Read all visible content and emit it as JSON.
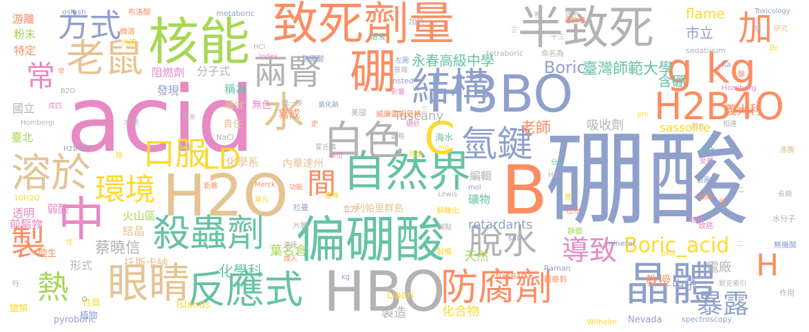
{
  "palette": {
    "slate": "#8fa0cb",
    "green": "#66c2a5",
    "orange": "#fc8d62",
    "pink": "#e78ac3",
    "lime": "#a6d854",
    "yellow": "#ffd92f",
    "tan": "#e5c494",
    "gray": "#b3b3b3"
  },
  "words": [
    {
      "text": "硼酸",
      "color": "slate"
    },
    {
      "text": "acid",
      "color": "pink"
    },
    {
      "text": "B",
      "color": "orange"
    },
    {
      "text": "偏硼酸",
      "color": "green"
    },
    {
      "text": "H2O",
      "color": "tan"
    },
    {
      "text": "致死劑量",
      "color": "orange"
    },
    {
      "text": "半致死",
      "color": "gray"
    },
    {
      "text": "H3BO",
      "color": "slate"
    },
    {
      "text": "核能",
      "color": "lime"
    },
    {
      "text": "自然界",
      "color": "green"
    },
    {
      "text": "HBO",
      "color": "gray"
    },
    {
      "text": "晶體",
      "color": "slate"
    },
    {
      "text": "眼睛",
      "color": "tan"
    },
    {
      "text": "中",
      "color": "pink"
    },
    {
      "text": "白色",
      "color": "gray"
    },
    {
      "text": "g kg",
      "color": "orange"
    },
    {
      "text": "H2B4O",
      "color": "orange"
    },
    {
      "text": "溶於",
      "color": "tan"
    },
    {
      "text": "殺蟲劑",
      "color": "green"
    },
    {
      "text": "反應式",
      "color": "green"
    },
    {
      "text": "防腐劑",
      "color": "orange"
    },
    {
      "text": "硼",
      "color": "orange"
    },
    {
      "text": "結構",
      "color": "slate"
    },
    {
      "text": "氫鍵",
      "color": "slate"
    },
    {
      "text": "C",
      "color": "yellow"
    },
    {
      "text": "水",
      "color": "tan"
    },
    {
      "text": "老鼠",
      "color": "tan"
    },
    {
      "text": "方式",
      "color": "slate"
    },
    {
      "text": "加",
      "color": "orange"
    },
    {
      "text": "兩腎",
      "color": "gray"
    },
    {
      "text": "脫水",
      "color": "gray"
    },
    {
      "text": "暴露",
      "color": "slate"
    },
    {
      "text": "環境",
      "color": "yellow"
    },
    {
      "text": "口服",
      "color": "yellow"
    },
    {
      "text": "製",
      "color": "orange"
    },
    {
      "text": "熱",
      "color": "lime"
    },
    {
      "text": "常",
      "color": "pink"
    },
    {
      "text": "LD",
      "color": "yellow"
    },
    {
      "text": "間",
      "color": "orange"
    },
    {
      "text": "導致",
      "color": "pink"
    },
    {
      "text": "Boric_acid",
      "color": "yellow"
    },
    {
      "text": "H",
      "color": "orange"
    },
    {
      "text": "Boric",
      "color": "slate"
    },
    {
      "text": "臺灣師範大學",
      "color": "green"
    },
    {
      "text": "永春高級中學",
      "color": "green"
    },
    {
      "text": "市立",
      "color": "slate"
    },
    {
      "text": "flame",
      "color": "yellow"
    },
    {
      "text": "含硼",
      "color": "green"
    },
    {
      "text": "老師",
      "color": "orange"
    },
    {
      "text": "吸收劑",
      "color": "gray"
    },
    {
      "text": "sassolite",
      "color": "yellow"
    },
    {
      "text": "義大利",
      "color": "orange"
    },
    {
      "text": "蔡曉信",
      "color": "gray"
    },
    {
      "text": "化學科",
      "color": "green"
    },
    {
      "text": "retardants",
      "color": "slate"
    },
    {
      "text": "天然",
      "color": "lime"
    },
    {
      "text": "電廠",
      "color": "gray"
    },
    {
      "text": "教授",
      "color": "orange"
    },
    {
      "text": "中子",
      "color": "slate"
    },
    {
      "text": "化合物",
      "color": "yellow"
    },
    {
      "text": "葉名倉",
      "color": "lime"
    },
    {
      "text": "製造",
      "color": "gray"
    },
    {
      "text": "Lipari",
      "color": "yellow"
    },
    {
      "text": "Tuscany",
      "color": "gray"
    },
    {
      "text": "利帕里群島",
      "color": "tan"
    },
    {
      "text": "礦物",
      "color": "green"
    },
    {
      "text": "編輯",
      "color": "gray"
    },
    {
      "text": "化學系",
      "color": "tan"
    },
    {
      "text": "內華達州",
      "color": "tan"
    },
    {
      "text": "托斯卡納",
      "color": "tan"
    },
    {
      "text": "形式",
      "color": "gray"
    },
    {
      "text": "結晶",
      "color": "tan"
    },
    {
      "text": "火山區",
      "color": "lime"
    },
    {
      "text": "弱酸",
      "color": "pink"
    },
    {
      "text": "透明",
      "color": "pink"
    },
    {
      "text": "前驅物",
      "color": "pink"
    },
    {
      "text": "臺北",
      "color": "lime"
    },
    {
      "text": "國立",
      "color": "gray"
    },
    {
      "text": "粉末",
      "color": "lime"
    },
    {
      "text": "游離",
      "color": "orange"
    },
    {
      "text": "特定",
      "color": "orange"
    },
    {
      "text": "分子式",
      "color": "gray"
    },
    {
      "text": "阻燃劑",
      "color": "pink"
    },
    {
      "text": "發現",
      "color": "slate"
    },
    {
      "text": "稱為",
      "color": "green"
    },
    {
      "text": "寫成",
      "color": "orange"
    },
    {
      "text": "責任",
      "color": "tan"
    },
    {
      "text": "蘊含",
      "color": "tan"
    },
    {
      "text": "無色",
      "color": "pink"
    },
    {
      "text": "Islands",
      "color": "yellow"
    },
    {
      "text": "pyroboric",
      "color": "slate"
    },
    {
      "text": "植物",
      "color": "slate"
    },
    {
      "text": "鹽類",
      "color": "yellow"
    },
    {
      "text": "陸生",
      "color": "orange"
    },
    {
      "text": "性質",
      "color": "yellow"
    },
    {
      "text": "Nevada",
      "color": "slate"
    },
    {
      "text": "spectroscopy",
      "color": "slate"
    },
    {
      "text": "Wilhelm",
      "color": "yellow"
    },
    {
      "text": "Na2B4O7",
      "color": "orange"
    },
    {
      "text": "Raman",
      "color": "slate"
    },
    {
      "text": "觀察到",
      "color": "orange"
    },
    {
      "text": "默克索引",
      "color": "gray"
    },
    {
      "text": "作用",
      "color": "gray"
    },
    {
      "text": "無機酸",
      "color": "slate"
    },
    {
      "text": "水分子",
      "color": "gray"
    },
    {
      "text": "mineral",
      "color": "slate"
    },
    {
      "text": "靜鹽",
      "color": "lime"
    },
    {
      "text": "在水",
      "color": "orange"
    },
    {
      "text": "pKa",
      "color": "yellow"
    },
    {
      "text": "致癌",
      "color": "pink"
    },
    {
      "text": "相鄰",
      "color": "orange"
    },
    {
      "text": "相較",
      "color": "pink"
    },
    {
      "text": "右圖",
      "color": "slate"
    },
    {
      "text": "受損",
      "color": "pink"
    },
    {
      "text": "氧化",
      "color": "green"
    },
    {
      "text": "沸騰",
      "color": "tan"
    },
    {
      "text": "分子",
      "color": "green"
    },
    {
      "text": "長期",
      "color": "gray"
    },
    {
      "text": "關注",
      "color": "tan"
    },
    {
      "text": "相連",
      "color": "gray"
    },
    {
      "text": "pm",
      "color": "yellow"
    },
    {
      "text": "Homberg",
      "color": "pink"
    },
    {
      "text": "sedativum",
      "color": "gray"
    },
    {
      "text": "Br",
      "color": "yellow"
    },
    {
      "text": "Ka",
      "color": "slate"
    },
    {
      "text": "士酸",
      "color": "orange"
    },
    {
      "text": "Toxicology",
      "color": "slate"
    },
    {
      "text": "研究",
      "color": "tan"
    },
    {
      "text": "命名為",
      "color": "gray"
    },
    {
      "text": "tetraboric",
      "color": "gray"
    },
    {
      "text": "含有",
      "color": "gray"
    },
    {
      "text": "毒物學",
      "color": "orange"
    },
    {
      "text": "十三",
      "color": "gray"
    },
    {
      "text": "裡",
      "color": "gray"
    },
    {
      "text": "加熱",
      "color": "gray"
    },
    {
      "text": "metaboric",
      "color": "slate"
    },
    {
      "text": "布洛酸",
      "color": "orange"
    },
    {
      "text": "oslash",
      "color": "slate"
    },
    {
      "text": "微溶",
      "color": "orange"
    },
    {
      "text": "光譜",
      "color": "yellow"
    },
    {
      "text": "焦硼酸",
      "color": "slate"
    },
    {
      "text": "HCl",
      "color": "gray"
    },
    {
      "text": "Index",
      "color": "pink"
    },
    {
      "text": "溶液",
      "color": "green"
    },
    {
      "text": "左圖",
      "color": "slate"
    },
    {
      "text": "衰竭",
      "color": "gray"
    },
    {
      "text": "nsted",
      "color": "slate"
    },
    {
      "text": "B2O",
      "color": "gray"
    },
    {
      "text": "成四",
      "color": "pink"
    },
    {
      "text": "Hombergi",
      "color": "gray"
    },
    {
      "text": "H2B4O7",
      "color": "slate"
    },
    {
      "text": "水果",
      "color": "gray"
    },
    {
      "text": "皮米",
      "color": "gray"
    },
    {
      "text": "進一步",
      "color": "gray"
    },
    {
      "text": "氯化鈉",
      "color": "slate"
    },
    {
      "text": "美國",
      "color": "gray"
    },
    {
      "text": "威廉霍姆貝格",
      "color": "orange"
    },
    {
      "text": "影響",
      "color": "pink"
    },
    {
      "text": "NaCl",
      "color": "gray"
    },
    {
      "text": "史",
      "color": "orange"
    },
    {
      "text": "晶格",
      "color": "gray"
    },
    {
      "text": "硼砂",
      "color": "pink"
    },
    {
      "text": "海水",
      "color": "green"
    },
    {
      "text": "mg",
      "color": "yellow"
    },
    {
      "text": "霍氏鎮",
      "color": "gray"
    },
    {
      "text": "單位",
      "color": "pink"
    },
    {
      "text": "指出",
      "color": "yellow"
    },
    {
      "text": "路",
      "color": "yellow"
    },
    {
      "text": "毒性",
      "color": "gray"
    },
    {
      "text": "距離",
      "color": "orange"
    },
    {
      "text": "10H2O",
      "color": "yellow"
    },
    {
      "text": "Merck",
      "color": "orange"
    },
    {
      "text": "單元",
      "color": "yellow"
    },
    {
      "text": "功能",
      "color": "orange"
    },
    {
      "text": "mol",
      "color": "slate"
    },
    {
      "text": "H2",
      "color": "gray"
    },
    {
      "text": "拉曼",
      "color": "slate"
    },
    {
      "text": "立方",
      "color": "orange"
    },
    {
      "text": "解離出",
      "color": "yellow"
    },
    {
      "text": "片層",
      "color": "gray"
    },
    {
      "text": "虛線",
      "color": "yellow"
    },
    {
      "text": "Lewis",
      "color": "gray"
    },
    {
      "text": "sal",
      "color": "slate"
    },
    {
      "text": "熔點",
      "color": "gray"
    },
    {
      "text": "連接",
      "color": "gray"
    },
    {
      "text": "製備",
      "color": "yellow"
    },
    {
      "text": "成人",
      "color": "orange"
    },
    {
      "text": "kg",
      "color": "slate"
    },
    {
      "text": "性",
      "color": "yellow"
    },
    {
      "text": "行",
      "color": "slate"
    },
    {
      "text": "早",
      "color": "orange"
    },
    {
      "text": "版",
      "color": "gray"
    },
    {
      "text": "三",
      "color": "gray"
    },
    {
      "text": "受",
      "color": "orange"
    },
    {
      "text": "三",
      "color": "gray"
    },
    {
      "text": "層",
      "color": "yellow"
    },
    {
      "text": "二",
      "color": "tan"
    },
    {
      "text": "二",
      "color": "gray"
    },
    {
      "text": "。",
      "color": "gray"
    }
  ]
}
